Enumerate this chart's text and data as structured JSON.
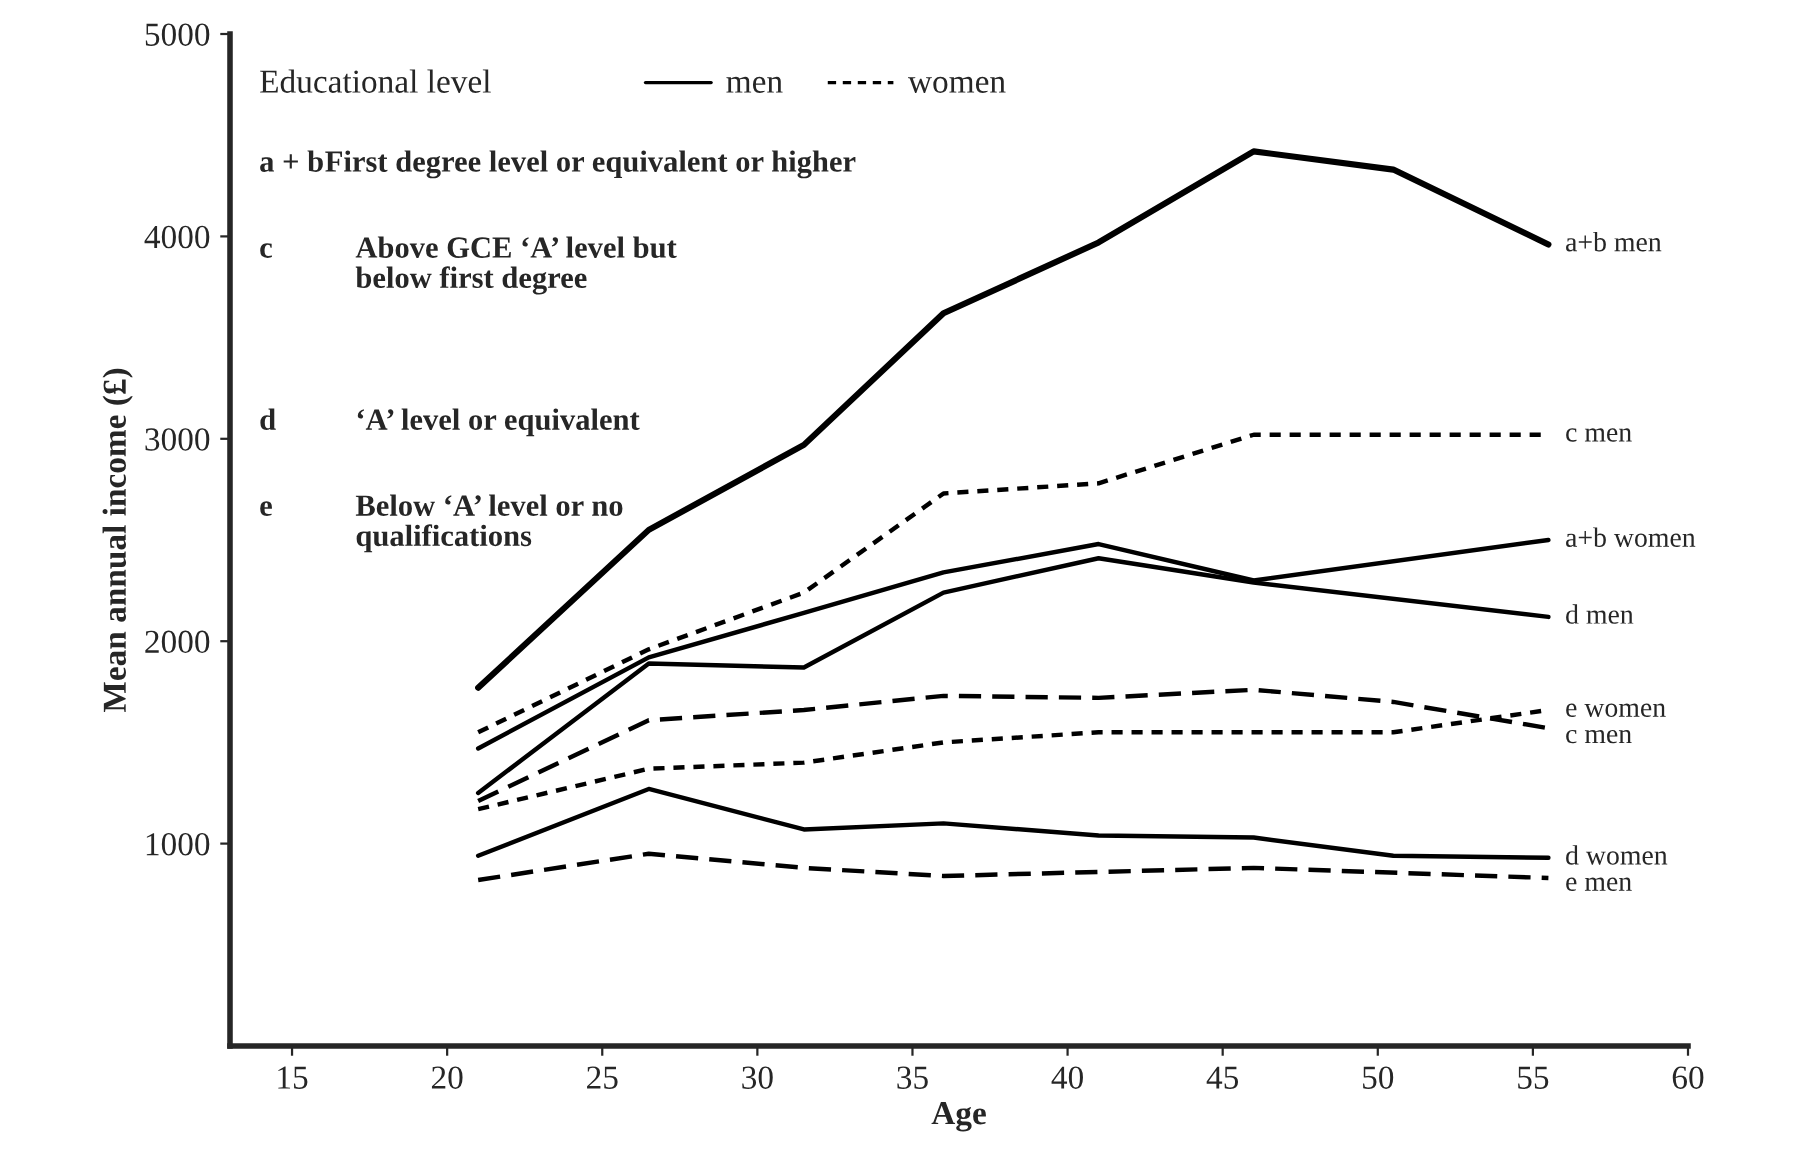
{
  "chart_data": {
    "type": "line",
    "xlabel": "Age",
    "ylabel": "Mean annual income (£)",
    "xlim": [
      13,
      60
    ],
    "xticks": [
      15,
      20,
      25,
      30,
      35,
      40,
      45,
      50,
      55,
      60
    ],
    "ylim": [
      0,
      5000
    ],
    "yticks": [
      1000,
      2000,
      3000,
      4000,
      5000
    ],
    "grid": false,
    "legend": false,
    "marker": "none",
    "series": [
      {
        "name": "a+b men",
        "color": "#000000",
        "line_style": "solid",
        "x": [
          21,
          26.5,
          31.5,
          36,
          41,
          46,
          50.5,
          55.5
        ],
        "values": [
          1770,
          2550,
          2970,
          3620,
          3970,
          4420,
          4330,
          3960
        ]
      },
      {
        "name": "c men",
        "color": "#000000",
        "line_style": "dotted",
        "x": [
          21,
          26.5,
          31.5,
          36,
          41,
          46,
          50.5,
          55.5
        ],
        "values": [
          1550,
          1960,
          2240,
          2730,
          2780,
          3020,
          3020,
          3020
        ]
      },
      {
        "name": "a+b women",
        "color": "#000000",
        "line_style": "solid",
        "x": [
          21,
          26.5,
          31.5,
          36,
          41,
          46,
          55.5
        ],
        "values": [
          1470,
          1920,
          2140,
          2340,
          2480,
          2300,
          2500
        ]
      },
      {
        "name": "d men",
        "color": "#000000",
        "line_style": "solid",
        "x": [
          21,
          26.5,
          31.5,
          36,
          41,
          46,
          55.5
        ],
        "values": [
          1250,
          1890,
          1870,
          2240,
          2410,
          2290,
          2120
        ]
      },
      {
        "name": "e women",
        "color": "#000000",
        "line_style": "dotted",
        "x": [
          21,
          26.5,
          31.5,
          36,
          41,
          46,
          50.5,
          55.5
        ],
        "values": [
          1170,
          1370,
          1400,
          1500,
          1550,
          1550,
          1550,
          1660
        ]
      },
      {
        "name": "c men",
        "color": "#000000",
        "line_style": "dashed",
        "x": [
          21,
          26.5,
          31.5,
          36,
          41,
          46,
          50.5,
          55.5
        ],
        "values": [
          1210,
          1610,
          1660,
          1730,
          1720,
          1760,
          1700,
          1570
        ]
      },
      {
        "name": "d women",
        "color": "#000000",
        "line_style": "solid",
        "x": [
          21,
          26.5,
          31.5,
          36,
          41,
          46,
          50.5,
          55.5
        ],
        "values": [
          940,
          1270,
          1070,
          1100,
          1040,
          1030,
          940,
          930
        ]
      },
      {
        "name": "e men",
        "color": "#000000",
        "line_style": "dashed",
        "x": [
          21,
          26.5,
          31.5,
          36,
          41,
          46,
          55.5
        ],
        "values": [
          820,
          950,
          880,
          840,
          860,
          880,
          830
        ]
      }
    ],
    "annotations": [
      "Educational level",
      "men",
      "women",
      "a + b",
      "First degree level or equivalent or higher",
      "c",
      "Above GCE ‘A’ level but\nbelow first degree",
      "d",
      "‘A’ level or equivalent",
      "e",
      "Below ‘A’ level or no\nqualifications"
    ]
  }
}
